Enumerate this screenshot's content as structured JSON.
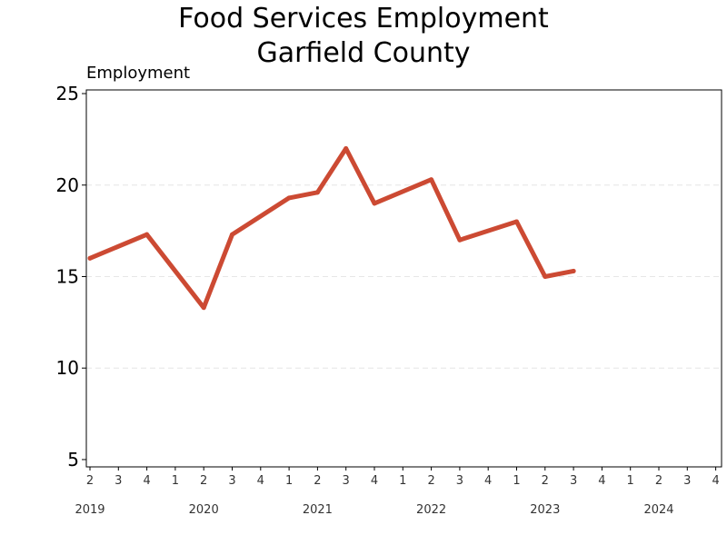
{
  "chart_data": {
    "type": "line",
    "title": "Food Services Employment",
    "subtitle": "Garfield County",
    "ylabel": "Employment",
    "xlabel": "",
    "ylim": [
      4.6,
      25.2
    ],
    "yticks": [
      5,
      10,
      15,
      20,
      25
    ],
    "grid": "horizontal dashed",
    "legend": "none",
    "colors": {
      "line": "#cc4a33",
      "axis": "#000000",
      "grid": "#e6e6e6"
    },
    "x_quarters": [
      "2019-Q2",
      "2019-Q3",
      "2019-Q4",
      "2020-Q1",
      "2020-Q2",
      "2020-Q3",
      "2020-Q4",
      "2021-Q1",
      "2021-Q2",
      "2021-Q3",
      "2021-Q4",
      "2022-Q1",
      "2022-Q2",
      "2022-Q3",
      "2022-Q4",
      "2023-Q1",
      "2023-Q2",
      "2023-Q3",
      "2023-Q4",
      "2024-Q1",
      "2024-Q2",
      "2024-Q3",
      "2024-Q4"
    ],
    "xtick_labels": [
      "2",
      "3",
      "4",
      "1",
      "2",
      "3",
      "4",
      "1",
      "2",
      "3",
      "4",
      "1",
      "2",
      "3",
      "4",
      "1",
      "2",
      "3",
      "4",
      "1",
      "2",
      "3",
      "4"
    ],
    "year_labels": [
      {
        "label": "2019",
        "quarter": "2019-Q2"
      },
      {
        "label": "2020",
        "quarter": "2020-Q2"
      },
      {
        "label": "2021",
        "quarter": "2021-Q2"
      },
      {
        "label": "2022",
        "quarter": "2022-Q2"
      },
      {
        "label": "2023",
        "quarter": "2023-Q2"
      },
      {
        "label": "2024",
        "quarter": "2024-Q2"
      }
    ],
    "series": [
      {
        "values": [
          {
            "x": "2019-Q2",
            "y": 16.0
          },
          {
            "x": "2019-Q4",
            "y": 17.3
          },
          {
            "x": "2020-Q2",
            "y": 13.3
          },
          {
            "x": "2020-Q3",
            "y": 17.3
          },
          {
            "x": "2021-Q1",
            "y": 19.3
          },
          {
            "x": "2021-Q2",
            "y": 19.6
          },
          {
            "x": "2021-Q3",
            "y": 22.0
          },
          {
            "x": "2021-Q4",
            "y": 19.0
          },
          {
            "x": "2022-Q2",
            "y": 20.3
          },
          {
            "x": "2022-Q3",
            "y": 17.0
          },
          {
            "x": "2023-Q1",
            "y": 18.0
          },
          {
            "x": "2023-Q2",
            "y": 15.0
          },
          {
            "x": "2023-Q3",
            "y": 15.3
          }
        ]
      }
    ]
  }
}
